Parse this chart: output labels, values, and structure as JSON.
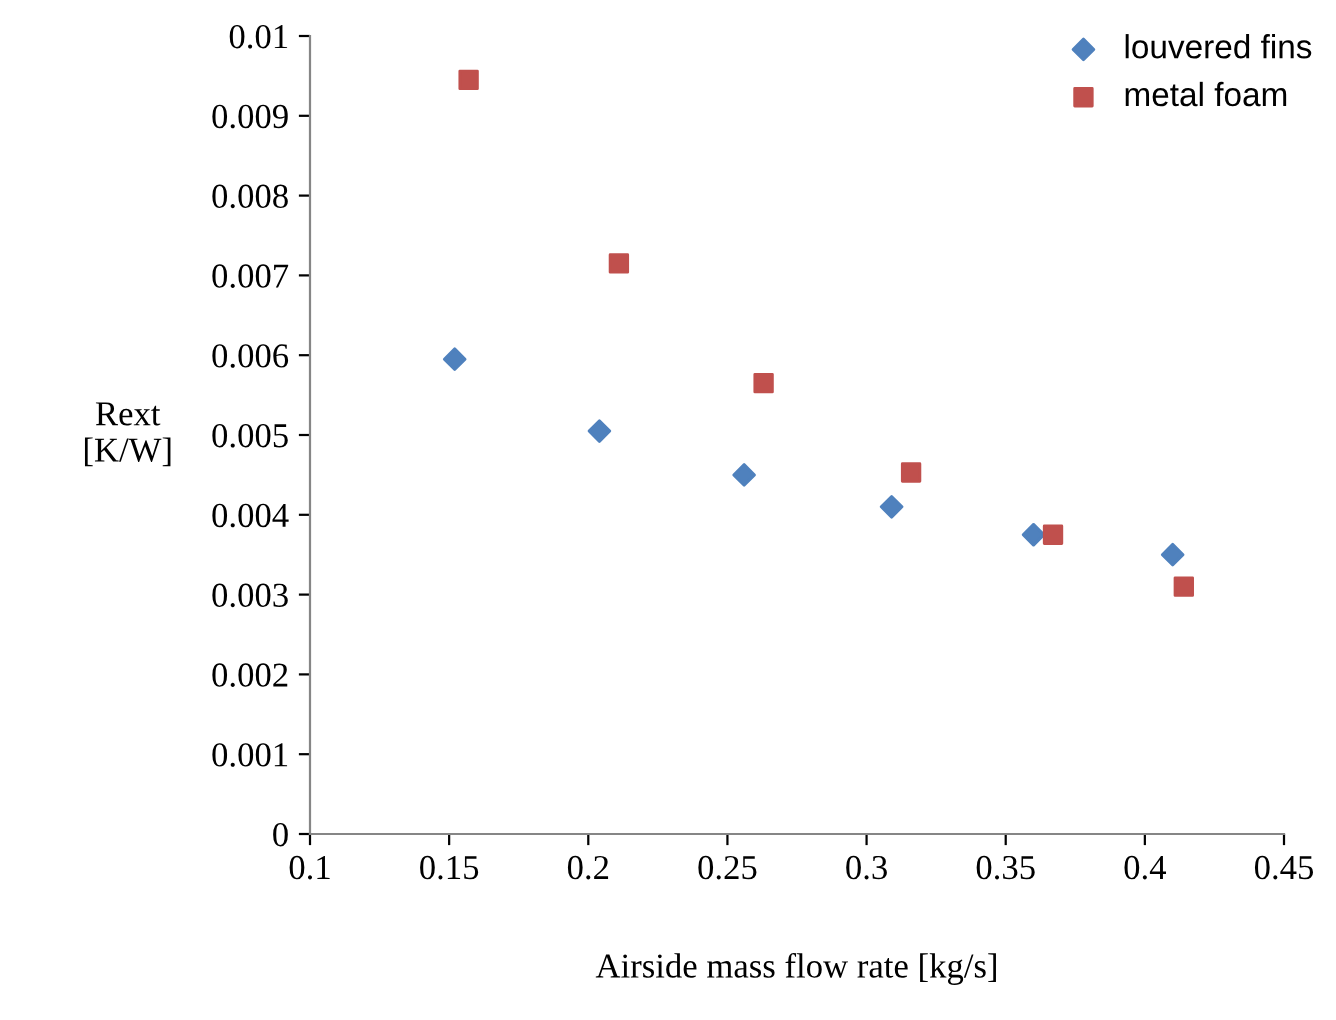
{
  "chart_data": {
    "type": "scatter",
    "xlabel": "Airside mass flow rate [kg/s]",
    "ylabel": "Rext\n[K/W]",
    "xlim": [
      0.1,
      0.45
    ],
    "xticks": [
      0.1,
      0.15,
      0.2,
      0.25,
      0.3,
      0.35,
      0.4,
      0.45
    ],
    "ylim": [
      0,
      0.01
    ],
    "yticks": [
      0,
      0.001,
      0.002,
      0.003,
      0.004,
      0.005,
      0.006,
      0.007,
      0.008,
      0.009,
      0.01
    ],
    "grid": false,
    "legend": "top right",
    "series": [
      {
        "name": "louvered fins",
        "color": "#4f81bd",
        "marker": "diamond",
        "x": [
          0.152,
          0.204,
          0.256,
          0.309,
          0.36,
          0.41
        ],
        "values": [
          0.00595,
          0.00505,
          0.0045,
          0.0041,
          0.00375,
          0.0035
        ]
      },
      {
        "name": "metal foam",
        "color": "#c0504d",
        "marker": "square",
        "x": [
          0.157,
          0.211,
          0.263,
          0.316,
          0.367,
          0.414
        ],
        "values": [
          0.00945,
          0.00715,
          0.00565,
          0.00453,
          0.00375,
          0.0031
        ]
      }
    ]
  }
}
